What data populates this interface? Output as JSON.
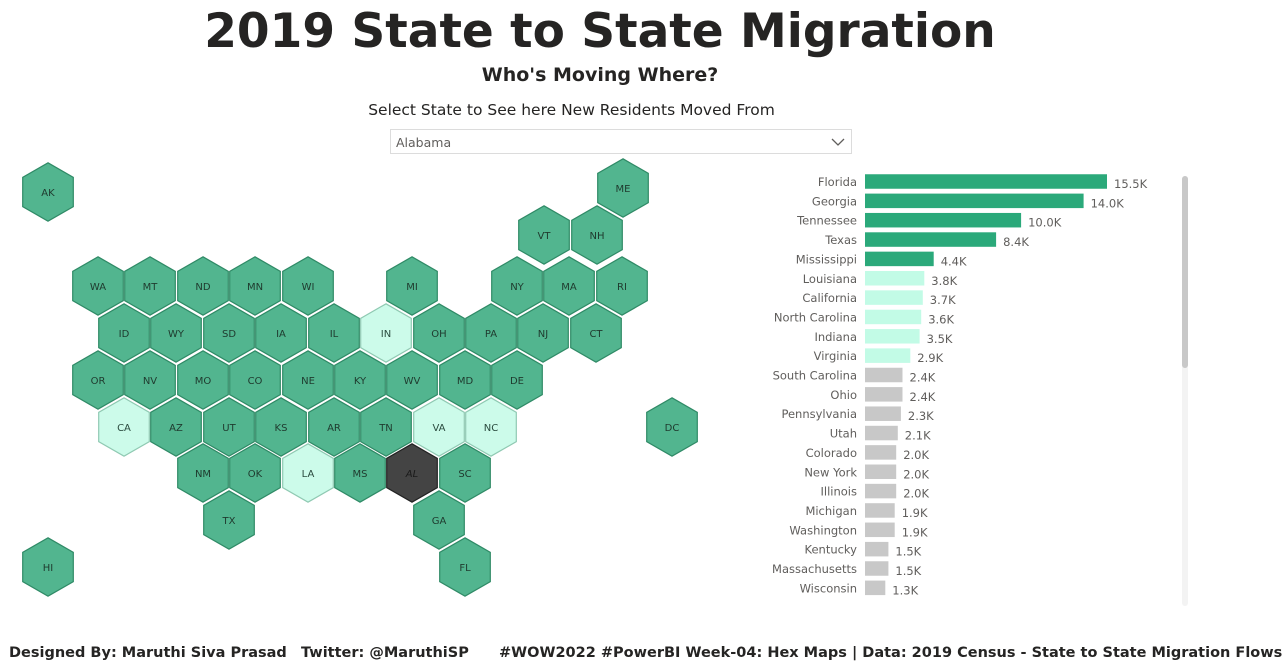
{
  "header": {
    "title": "2019 State to State Migration",
    "subtitle": "Who's Moving Where?",
    "prompt": "Select State to See here New Residents Moved From"
  },
  "state_selector": {
    "selected": "Alabama",
    "icon": "chevron-down-icon"
  },
  "colors": {
    "hex_default": "#52b58f",
    "hex_default_stroke": "#2f8a66",
    "hex_highlight": "#ccfbea",
    "hex_highlight_stroke": "#8fc9b2",
    "hex_selected": "#444444",
    "bar_top5": "#2ba97a",
    "bar_next5": "#c2fbe6",
    "bar_rest": "#c8c8c8"
  },
  "hex_map": {
    "tiles": [
      {
        "abbr": "AK",
        "state": "default"
      },
      {
        "abbr": "ME",
        "state": "default"
      },
      {
        "abbr": "VT",
        "state": "default"
      },
      {
        "abbr": "NH",
        "state": "default"
      },
      {
        "abbr": "WA",
        "state": "default"
      },
      {
        "abbr": "MT",
        "state": "default"
      },
      {
        "abbr": "ND",
        "state": "default"
      },
      {
        "abbr": "MN",
        "state": "default"
      },
      {
        "abbr": "WI",
        "state": "default"
      },
      {
        "abbr": "MI",
        "state": "default"
      },
      {
        "abbr": "NY",
        "state": "default"
      },
      {
        "abbr": "MA",
        "state": "default"
      },
      {
        "abbr": "RI",
        "state": "default"
      },
      {
        "abbr": "ID",
        "state": "default"
      },
      {
        "abbr": "WY",
        "state": "default"
      },
      {
        "abbr": "SD",
        "state": "default"
      },
      {
        "abbr": "IA",
        "state": "default"
      },
      {
        "abbr": "IL",
        "state": "default"
      },
      {
        "abbr": "IN",
        "state": "highlight"
      },
      {
        "abbr": "OH",
        "state": "default"
      },
      {
        "abbr": "PA",
        "state": "default"
      },
      {
        "abbr": "NJ",
        "state": "default"
      },
      {
        "abbr": "CT",
        "state": "default"
      },
      {
        "abbr": "OR",
        "state": "default"
      },
      {
        "abbr": "NV",
        "state": "default"
      },
      {
        "abbr": "MO",
        "state": "default"
      },
      {
        "abbr": "CO",
        "state": "default"
      },
      {
        "abbr": "NE",
        "state": "default"
      },
      {
        "abbr": "KY",
        "state": "default"
      },
      {
        "abbr": "WV",
        "state": "default"
      },
      {
        "abbr": "MD",
        "state": "default"
      },
      {
        "abbr": "DE",
        "state": "default"
      },
      {
        "abbr": "CA",
        "state": "highlight"
      },
      {
        "abbr": "AZ",
        "state": "default"
      },
      {
        "abbr": "UT",
        "state": "default"
      },
      {
        "abbr": "KS",
        "state": "default"
      },
      {
        "abbr": "AR",
        "state": "default"
      },
      {
        "abbr": "TN",
        "state": "default"
      },
      {
        "abbr": "VA",
        "state": "highlight"
      },
      {
        "abbr": "NC",
        "state": "highlight"
      },
      {
        "abbr": "DC",
        "state": "default"
      },
      {
        "abbr": "NM",
        "state": "default"
      },
      {
        "abbr": "OK",
        "state": "default"
      },
      {
        "abbr": "LA",
        "state": "highlight"
      },
      {
        "abbr": "MS",
        "state": "default"
      },
      {
        "abbr": "AL",
        "state": "selected"
      },
      {
        "abbr": "SC",
        "state": "default"
      },
      {
        "abbr": "TX",
        "state": "default"
      },
      {
        "abbr": "GA",
        "state": "default"
      },
      {
        "abbr": "HI",
        "state": "default"
      },
      {
        "abbr": "FL",
        "state": "default"
      }
    ]
  },
  "chart_data": {
    "type": "bar",
    "orientation": "horizontal",
    "categories": [
      "Florida",
      "Georgia",
      "Tennessee",
      "Texas",
      "Mississippi",
      "Louisiana",
      "California",
      "North Carolina",
      "Indiana",
      "Virginia",
      "South Carolina",
      "Ohio",
      "Pennsylvania",
      "Utah",
      "Colorado",
      "New York",
      "Illinois",
      "Michigan",
      "Washington",
      "Kentucky",
      "Massachusetts",
      "Wisconsin"
    ],
    "values": [
      15500,
      14000,
      10000,
      8400,
      4400,
      3800,
      3700,
      3600,
      3500,
      2900,
      2400,
      2400,
      2300,
      2100,
      2000,
      2000,
      2000,
      1900,
      1900,
      1500,
      1500,
      1300
    ],
    "data_labels": [
      "15.5K",
      "14.0K",
      "10.0K",
      "8.4K",
      "4.4K",
      "3.8K",
      "3.7K",
      "3.6K",
      "3.5K",
      "2.9K",
      "2.4K",
      "2.4K",
      "2.3K",
      "2.1K",
      "2.0K",
      "2.0K",
      "2.0K",
      "1.9K",
      "1.9K",
      "1.5K",
      "1.5K",
      "1.3K"
    ],
    "color_groups": [
      "top5",
      "top5",
      "top5",
      "top5",
      "top5",
      "next5",
      "next5",
      "next5",
      "next5",
      "next5",
      "rest",
      "rest",
      "rest",
      "rest",
      "rest",
      "rest",
      "rest",
      "rest",
      "rest",
      "rest",
      "rest",
      "rest"
    ],
    "xlim": [
      0,
      15500
    ],
    "grid": false,
    "legend": "none"
  },
  "footer": {
    "designer": "Designed By: Maruthi Siva Prasad",
    "twitter": "Twitter: @MaruthiSP",
    "source": "#WOW2022 #PowerBI Week-04: Hex Maps | Data: 2019 Census - State to State Migration Flows"
  }
}
